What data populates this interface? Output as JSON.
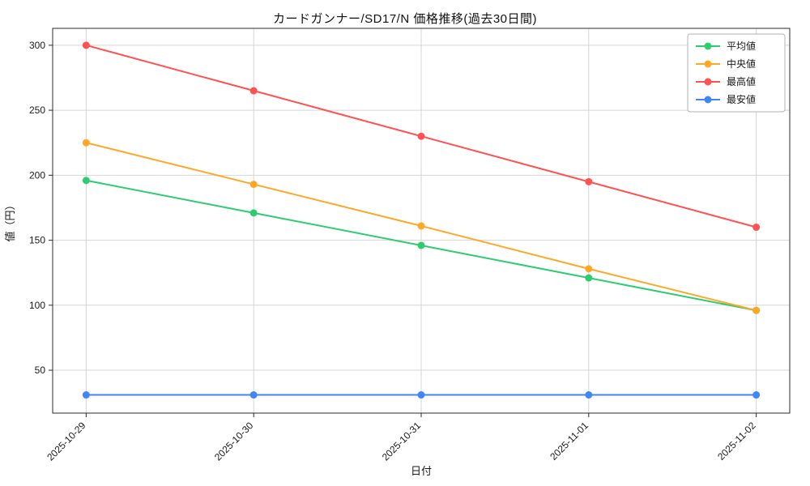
{
  "chart_data": {
    "type": "line",
    "title": "カードガンナー/SD17/N 価格推移(過去30日間)",
    "xlabel": "日付",
    "ylabel": "値（円）",
    "x": [
      "2025-10-29",
      "2025-10-30",
      "2025-10-31",
      "2025-11-01",
      "2025-11-02"
    ],
    "series": [
      {
        "name": "平均値",
        "color": "#2ecc71",
        "values": [
          196,
          171,
          146,
          121,
          96
        ]
      },
      {
        "name": "中央値",
        "color": "#ffa726",
        "values": [
          225,
          193,
          161,
          128,
          96
        ]
      },
      {
        "name": "最高値",
        "color": "#ff5252",
        "values": [
          300,
          265,
          230,
          195,
          160
        ]
      },
      {
        "name": "最安値",
        "color": "#4285f4",
        "values": [
          31,
          31,
          31,
          31,
          31
        ]
      }
    ],
    "ylim": [
      17,
      313
    ],
    "yticks": [
      50,
      100,
      150,
      200,
      250,
      300
    ],
    "grid": true,
    "legend_position": "top-right",
    "grid_color": "#d5d5d5",
    "axis_color": "#2b2b2b",
    "text_color": "#1a1a1a"
  }
}
